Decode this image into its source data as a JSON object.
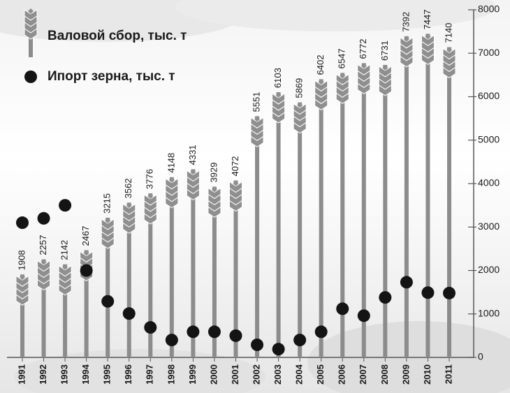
{
  "chart_data": {
    "type": "bar",
    "categories": [
      "1991",
      "1992",
      "1993",
      "1994",
      "1995",
      "1996",
      "1997",
      "1998",
      "1999",
      "2000",
      "2001",
      "2002",
      "2003",
      "2004",
      "2005",
      "2006",
      "2007",
      "2008",
      "2009",
      "2010",
      "2011"
    ],
    "series": [
      {
        "name": "Валовой сбор, тыс. т",
        "color": "#8c8c8c",
        "values": [
          1908,
          2257,
          2142,
          2467,
          3215,
          3562,
          3776,
          4148,
          4331,
          3929,
          4072,
          5551,
          6103,
          5869,
          6402,
          6547,
          6772,
          6731,
          7392,
          7447,
          7140
        ]
      },
      {
        "name": "Ипорт зерна, тыс. т",
        "color": "#141414",
        "type": "scatter",
        "values": [
          3100,
          3200,
          3500,
          2000,
          1290,
          1010,
          690,
          400,
          590,
          590,
          500,
          290,
          190,
          400,
          590,
          1120,
          960,
          1380,
          1730,
          1490,
          1480
        ]
      }
    ],
    "ylim": [
      0,
      8000
    ],
    "yticks": [
      0,
      1000,
      2000,
      3000,
      4000,
      5000,
      6000,
      7000,
      8000
    ]
  }
}
